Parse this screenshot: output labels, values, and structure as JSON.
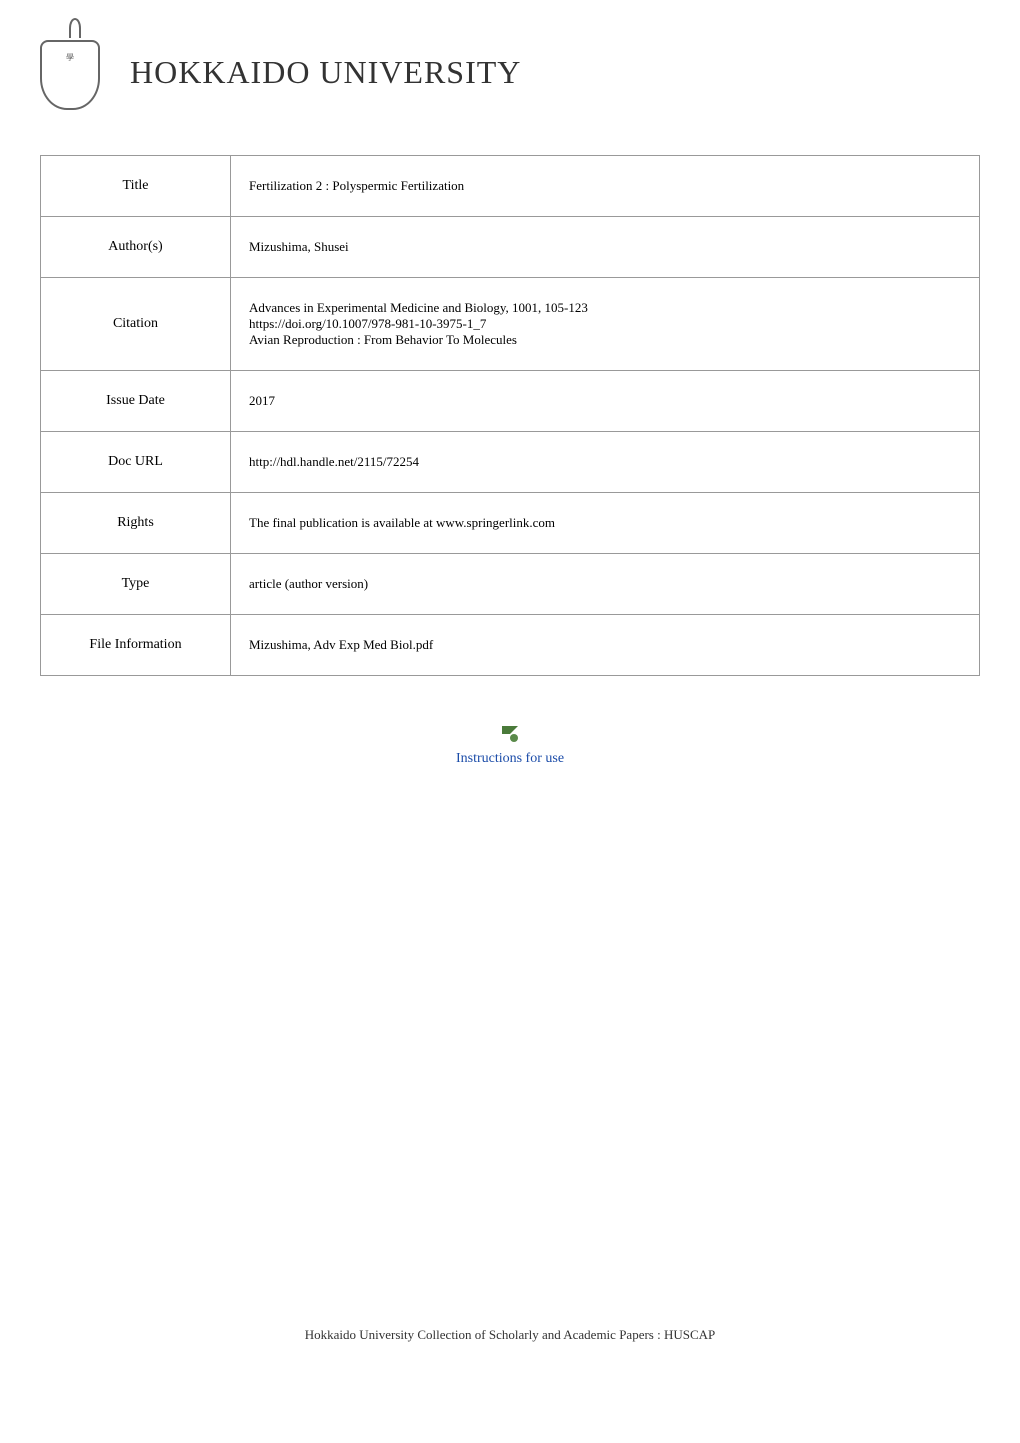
{
  "header": {
    "university_name": "HOKKAIDO UNIVERSITY"
  },
  "metadata": {
    "rows": [
      {
        "label": "Title",
        "value": "Fertilization 2 : Polyspermic Fertilization"
      },
      {
        "label": "Author(s)",
        "value": "Mizushima, Shusei"
      },
      {
        "label": "Citation",
        "value": "Advances in Experimental Medicine and Biology, 1001, 105-123\nhttps://doi.org/10.1007/978-981-10-3975-1_7\nAvian Reproduction : From Behavior To Molecules"
      },
      {
        "label": "Issue Date",
        "value": "2017"
      },
      {
        "label": "Doc URL",
        "value": "http://hdl.handle.net/2115/72254"
      },
      {
        "label": "Rights",
        "value": "The final publication is available at www.springerlink.com"
      },
      {
        "label": "Type",
        "value": "article (author version)"
      },
      {
        "label": "File Information",
        "value": "Mizushima, Adv Exp Med Biol.pdf"
      }
    ]
  },
  "instructions": {
    "link_text": "Instructions for use"
  },
  "footer": {
    "text": "Hokkaido University Collection of Scholarly and Academic Papers : HUSCAP"
  }
}
